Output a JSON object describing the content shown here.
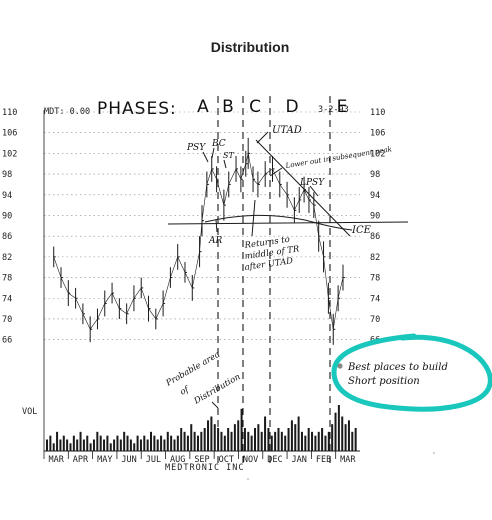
{
  "chart_data": {
    "type": "bar",
    "title": "Distribution",
    "header_code": "MDT: 0.00",
    "phases_label": "PHASES:",
    "phases": [
      "A",
      "B",
      "C",
      "D",
      "E"
    ],
    "date_label": "3-2-93",
    "y_ticks": [
      110,
      106,
      102,
      98,
      94,
      90,
      86,
      82,
      78,
      74,
      70,
      66
    ],
    "ylim": [
      64,
      110
    ],
    "volume_label": "VOL",
    "x_ticks": [
      "MAR",
      "APR",
      "MAY",
      "JUN",
      "JUL",
      "AUG",
      "SEP",
      "OCT",
      "NOV",
      "DEC",
      "JAN",
      "FEB",
      "MAR"
    ],
    "footer": "MEDTRONIC INC",
    "price_series": {
      "name": "",
      "x_months": [
        0,
        0.3,
        0.6,
        0.9,
        1.2,
        1.5,
        1.8,
        2.1,
        2.4,
        2.7,
        3.0,
        3.3,
        3.6,
        3.9,
        4.2,
        4.5,
        4.8,
        5.1,
        5.4,
        5.7,
        6.0,
        6.1,
        6.3,
        6.5,
        6.7,
        7.0,
        7.2,
        7.5,
        7.7,
        7.9,
        8.0,
        8.2,
        8.4,
        8.7,
        9.0,
        9.3,
        9.6,
        9.9,
        10.1,
        10.3,
        10.5,
        10.7,
        10.9,
        11.1,
        11.3,
        11.5,
        11.7,
        11.9
      ],
      "close": [
        82,
        78,
        75,
        74,
        71,
        68,
        70,
        73,
        75,
        72,
        71,
        74,
        76,
        72,
        70,
        73,
        78,
        82,
        79,
        76,
        83,
        89,
        96,
        99,
        97,
        92,
        96,
        99,
        97,
        100,
        102,
        97,
        96,
        98,
        99,
        96,
        94,
        91,
        93,
        95,
        93,
        92,
        86,
        82,
        74,
        68,
        74,
        78
      ],
      "range": [
        4,
        4,
        5,
        4,
        4,
        5,
        4,
        5,
        4,
        4,
        4,
        5,
        4,
        5,
        4,
        5,
        4,
        5,
        4,
        5,
        6,
        6,
        5,
        5,
        5,
        6,
        5,
        5,
        5,
        5,
        6,
        5,
        5,
        5,
        5,
        5,
        5,
        5,
        5,
        5,
        5,
        5,
        6,
        6,
        6,
        6,
        5,
        5
      ]
    },
    "volume_series": {
      "name": "",
      "values": [
        3,
        4,
        2,
        5,
        3,
        4,
        3,
        2,
        4,
        3,
        5,
        3,
        4,
        2,
        3,
        5,
        4,
        3,
        4,
        2,
        3,
        4,
        3,
        5,
        4,
        3,
        2,
        4,
        3,
        4,
        3,
        5,
        4,
        3,
        4,
        3,
        5,
        4,
        3,
        4,
        6,
        5,
        4,
        7,
        5,
        4,
        5,
        6,
        8,
        9,
        7,
        6,
        5,
        4,
        6,
        5,
        7,
        8,
        11,
        6,
        5,
        4,
        6,
        7,
        5,
        9,
        6,
        4,
        5,
        6,
        5,
        4,
        6,
        8,
        7,
        9,
        5,
        4,
        6,
        5,
        4,
        5,
        6,
        4,
        5,
        7,
        10,
        12,
        9,
        7,
        8,
        5,
        6
      ]
    },
    "annotations": {
      "psy": "PSY",
      "bc": "BC",
      "st": "ST",
      "utad": "UTAD",
      "lower_peak": "Lower out in subsequent peak",
      "lpsy": "LPSY",
      "ice": "ICE",
      "ar": "AR",
      "returns": [
        "Returns to",
        "middle of TR",
        "after UTAD"
      ],
      "probable": [
        "Probable area",
        "of",
        "Distribution"
      ],
      "best_places": [
        "Best places to build",
        "Short position"
      ]
    },
    "colors": {
      "ink": "#1a1a1a",
      "highlight": "#19c7bd"
    }
  }
}
